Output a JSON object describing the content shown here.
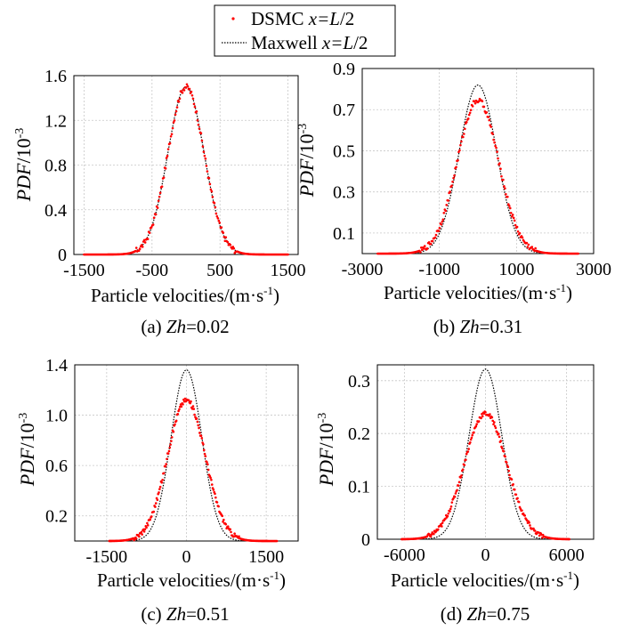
{
  "legend": {
    "dsmc_label": "DSMC ",
    "dsmc_italic": "x=L",
    "dsmc_suffix": "/2",
    "maxwell_label": "Maxwell ",
    "maxwell_italic": "x=L",
    "maxwell_suffix": "/2",
    "dsmc_color": "#ff0000",
    "maxwell_color": "#000000"
  },
  "chart_data": [
    {
      "type": "line",
      "panel": "a",
      "caption_prefix": "(a)  ",
      "caption_italic": "Zh",
      "caption_suffix": "=0.02",
      "xlabel": "Particle velocities/(m·s",
      "xlabel_sup": "-1",
      "xlabel_end": ")",
      "ylabel": "PDF",
      "ylabel_unit": "/10",
      "ylabel_sup": "-3",
      "xlim": [
        -1650,
        1650
      ],
      "ylim": [
        0,
        1.6
      ],
      "xticks": [
        -1500,
        -500,
        500,
        1500
      ],
      "yticks": [
        0,
        0.4,
        0.8,
        1.2,
        1.6
      ],
      "xtick_labels": [
        "-1500",
        "-500",
        "500",
        "1500"
      ],
      "ytick_labels": [
        "0",
        "0.4",
        "0.8",
        "1.2",
        "1.6"
      ],
      "grid": true,
      "series": [
        {
          "name": "DSMC x=L/2",
          "kind": "scatter",
          "mean": 0,
          "sigma": 266,
          "peak": 1.5,
          "x_range": [
            -1500,
            1500
          ]
        },
        {
          "name": "Maxwell x=L/2",
          "kind": "line",
          "mean": 0,
          "sigma": 266,
          "peak": 1.5,
          "x_range": [
            -1500,
            1500
          ]
        }
      ]
    },
    {
      "type": "line",
      "panel": "b",
      "caption_prefix": "(b)  ",
      "caption_italic": "Zh",
      "caption_suffix": "=0.31",
      "xlabel": "Particle velocities/(m·s",
      "xlabel_sup": "-1",
      "xlabel_end": ")",
      "ylabel": "PDF",
      "ylabel_unit": "/10",
      "ylabel_sup": "-3",
      "xlim": [
        -3000,
        3000
      ],
      "ylim": [
        0,
        0.9
      ],
      "xticks": [
        -3000,
        -1000,
        1000,
        3000
      ],
      "yticks": [
        0.1,
        0.3,
        0.5,
        0.7,
        0.9
      ],
      "xtick_labels": [
        "-3000",
        "-1000",
        "1000",
        "3000"
      ],
      "ytick_labels": [
        "0.1",
        "0.3",
        "0.5",
        "0.7",
        "0.9"
      ],
      "grid": true,
      "series": [
        {
          "name": "DSMC x=L/2",
          "kind": "scatter",
          "mean": 0,
          "sigma": 535,
          "peak": 0.745,
          "x_range": [
            -2600,
            2600
          ]
        },
        {
          "name": "Maxwell x=L/2",
          "kind": "line",
          "mean": 0,
          "sigma": 485,
          "peak": 0.82,
          "x_range": [
            -2600,
            2600
          ]
        }
      ]
    },
    {
      "type": "line",
      "panel": "c",
      "caption_prefix": "(c) ",
      "caption_italic": "Zh",
      "caption_suffix": "=0.51",
      "xlabel": "Particle velocities/(m·s",
      "xlabel_sup": "-1",
      "xlabel_end": ")",
      "ylabel": "PDF",
      "ylabel_unit": "/10",
      "ylabel_sup": "-3",
      "xlim": [
        -2100,
        2100
      ],
      "ylim": [
        0,
        1.4
      ],
      "xticks": [
        -1500,
        0,
        1500
      ],
      "yticks": [
        0.2,
        0.6,
        1.0,
        1.4
      ],
      "xtick_labels": [
        "-1500",
        "0",
        "1500"
      ],
      "ytick_labels": [
        "0.2",
        "0.6",
        "1.0",
        "1.4"
      ],
      "grid": true,
      "series": [
        {
          "name": "DSMC x=L/2",
          "kind": "scatter",
          "mean": 0,
          "sigma": 355,
          "peak": 1.12,
          "x_range": [
            -1450,
            1700
          ]
        },
        {
          "name": "Maxwell x=L/2",
          "kind": "line",
          "mean": 0,
          "sigma": 290,
          "peak": 1.36,
          "x_range": [
            -1450,
            1700
          ]
        }
      ]
    },
    {
      "type": "line",
      "panel": "d",
      "caption_prefix": "(d) ",
      "caption_italic": "Zh",
      "caption_suffix": "=0.75",
      "xlabel": "Particle velocities/(m·s",
      "xlabel_sup": "-1",
      "xlabel_end": ")",
      "ylabel": "PDF",
      "ylabel_unit": "/10",
      "ylabel_sup": "-3",
      "xlim": [
        -8000,
        8000
      ],
      "ylim": [
        0,
        0.33
      ],
      "xticks": [
        -6000,
        0,
        6000
      ],
      "yticks": [
        0,
        0.1,
        0.2,
        0.3
      ],
      "xtick_labels": [
        "-6000",
        "0",
        "6000"
      ],
      "ytick_labels": [
        "0",
        "0.1",
        "0.2",
        "0.3"
      ],
      "grid": true,
      "series": [
        {
          "name": "DSMC x=L/2",
          "kind": "scatter",
          "mean": 0,
          "sigma": 1560,
          "peak": 0.238,
          "x_range": [
            -6200,
            6200
          ]
        },
        {
          "name": "Maxwell x=L/2",
          "kind": "line",
          "mean": 0,
          "sigma": 1220,
          "peak": 0.322,
          "x_range": [
            -6200,
            6200
          ]
        }
      ]
    }
  ]
}
